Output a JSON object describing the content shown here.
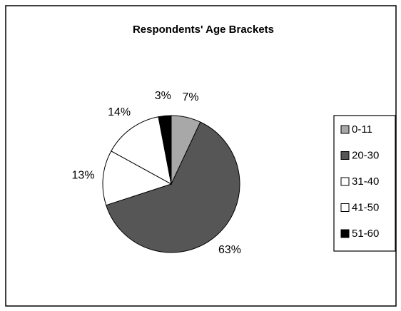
{
  "chart_data": {
    "type": "pie",
    "title": "Respondents' Age Brackets",
    "categories": [
      "0-11",
      "20-30",
      "31-40",
      "41-50",
      "51-60"
    ],
    "values": [
      7,
      63,
      13,
      14,
      3
    ],
    "value_labels": [
      "7%",
      "63%",
      "13%",
      "14%",
      "3%"
    ],
    "colors": [
      "#a8a8a8",
      "#565656",
      "#ffffff",
      "#ffffff",
      "#000000"
    ],
    "legend": "right"
  }
}
